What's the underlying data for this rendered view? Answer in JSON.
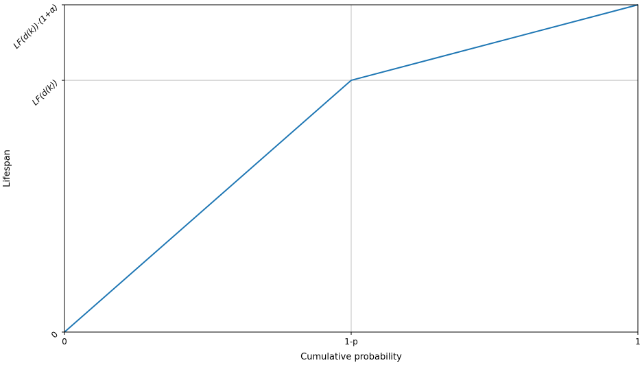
{
  "chart_data": {
    "type": "line",
    "title": "",
    "xlabel": "Cumulative probability",
    "ylabel": "Lifespan",
    "x_ticks": [
      {
        "value": 0,
        "label": "0"
      },
      {
        "value": 0.5,
        "label": "1-p"
      },
      {
        "value": 1,
        "label": "1"
      }
    ],
    "y_ticks": [
      {
        "value": 0,
        "label": "0"
      },
      {
        "value": 1,
        "label": "LF(d(k))"
      },
      {
        "value": 1.3,
        "label": "LF(d(k))·(1+α)"
      }
    ],
    "xlim": [
      0,
      1
    ],
    "ylim": [
      0,
      1.3
    ],
    "grid": true,
    "series": [
      {
        "color": "#1f77b4",
        "x": [
          0,
          0.5,
          1
        ],
        "y": [
          0,
          1,
          1.3
        ]
      }
    ]
  }
}
